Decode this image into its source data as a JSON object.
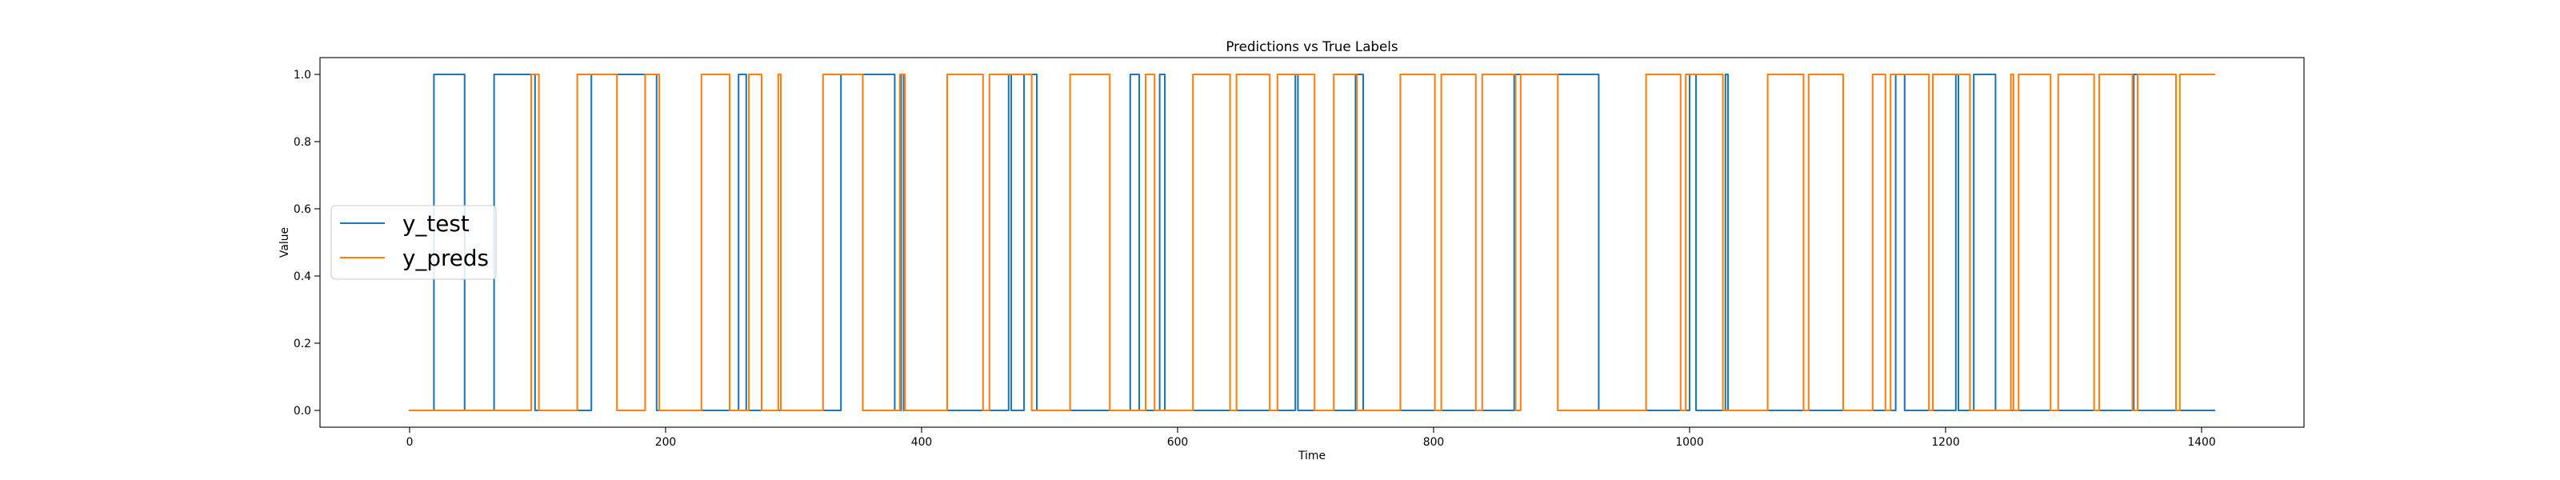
{
  "chart_data": {
    "type": "line",
    "title": "Predictions vs True Labels",
    "xlabel": "Time",
    "ylabel": "Value",
    "xlim": [
      -70,
      1480
    ],
    "ylim": [
      -0.05,
      1.05
    ],
    "xticks": [
      0,
      200,
      400,
      600,
      800,
      1000,
      1200,
      1400
    ],
    "yticks": [
      0.0,
      0.2,
      0.4,
      0.6,
      0.8,
      1.0
    ],
    "ytick_labels": [
      "0.0",
      "0.2",
      "0.4",
      "0.6",
      "0.8",
      "1.0"
    ],
    "grid": false,
    "legend_position": "center-left",
    "series": [
      {
        "name": "y_test",
        "color": "#1f77b4",
        "steps": [
          [
            0,
            0
          ],
          [
            19,
            1
          ],
          [
            43,
            0
          ],
          [
            66,
            1
          ],
          [
            98,
            0
          ],
          [
            142,
            1
          ],
          [
            193,
            0
          ],
          [
            257,
            1
          ],
          [
            263,
            0
          ],
          [
            337,
            1
          ],
          [
            379,
            0
          ],
          [
            384,
            1
          ],
          [
            386,
            0
          ],
          [
            468,
            1
          ],
          [
            470,
            0
          ],
          [
            480,
            1
          ],
          [
            490,
            0
          ],
          [
            563,
            1
          ],
          [
            570,
            0
          ],
          [
            586,
            1
          ],
          [
            590,
            0
          ],
          [
            692,
            1
          ],
          [
            694,
            0
          ],
          [
            739,
            1
          ],
          [
            745,
            0
          ],
          [
            863,
            1
          ],
          [
            929,
            0
          ],
          [
            1000,
            1
          ],
          [
            1005,
            0
          ],
          [
            1028,
            1
          ],
          [
            1030,
            0
          ],
          [
            1161,
            1
          ],
          [
            1168,
            0
          ],
          [
            1208,
            1
          ],
          [
            1210,
            0
          ],
          [
            1222,
            1
          ],
          [
            1239,
            0
          ],
          [
            1347,
            1
          ],
          [
            1350,
            0
          ]
        ],
        "x_end": 1410
      },
      {
        "name": "y_preds",
        "color": "#ff7f0e",
        "steps": [
          [
            0,
            0
          ],
          [
            95,
            1
          ],
          [
            101,
            0
          ],
          [
            131,
            1
          ],
          [
            162,
            0
          ],
          [
            184,
            1
          ],
          [
            195,
            0
          ],
          [
            228,
            1
          ],
          [
            250,
            0
          ],
          [
            265,
            1
          ],
          [
            275,
            0
          ],
          [
            288,
            1
          ],
          [
            290,
            0
          ],
          [
            323,
            1
          ],
          [
            354,
            0
          ],
          [
            383,
            1
          ],
          [
            387,
            0
          ],
          [
            420,
            1
          ],
          [
            448,
            0
          ],
          [
            453,
            1
          ],
          [
            486,
            0
          ],
          [
            516,
            1
          ],
          [
            547,
            0
          ],
          [
            575,
            1
          ],
          [
            582,
            0
          ],
          [
            612,
            1
          ],
          [
            641,
            0
          ],
          [
            646,
            1
          ],
          [
            672,
            0
          ],
          [
            678,
            1
          ],
          [
            707,
            0
          ],
          [
            722,
            1
          ],
          [
            740,
            0
          ],
          [
            774,
            1
          ],
          [
            801,
            0
          ],
          [
            806,
            1
          ],
          [
            833,
            0
          ],
          [
            838,
            1
          ],
          [
            864,
            0
          ],
          [
            868,
            1
          ],
          [
            897,
            0
          ],
          [
            966,
            1
          ],
          [
            993,
            0
          ],
          [
            997,
            1
          ],
          [
            1026,
            0
          ],
          [
            1061,
            1
          ],
          [
            1089,
            0
          ],
          [
            1093,
            1
          ],
          [
            1120,
            0
          ],
          [
            1143,
            1
          ],
          [
            1153,
            0
          ],
          [
            1157,
            1
          ],
          [
            1187,
            0
          ],
          [
            1190,
            1
          ],
          [
            1219,
            0
          ],
          [
            1251,
            1
          ],
          [
            1253,
            0
          ],
          [
            1257,
            1
          ],
          [
            1282,
            0
          ],
          [
            1288,
            1
          ],
          [
            1316,
            0
          ],
          [
            1320,
            1
          ],
          [
            1346,
            0
          ],
          [
            1350,
            1
          ],
          [
            1380,
            0
          ],
          [
            1383,
            1
          ]
        ],
        "x_end": 1410
      }
    ]
  }
}
